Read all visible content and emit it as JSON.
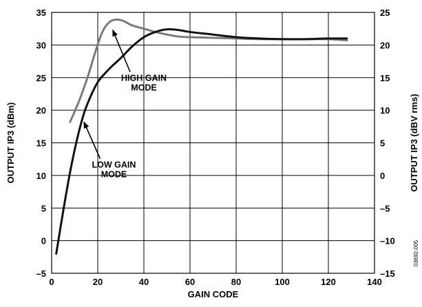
{
  "chart_data": {
    "type": "line",
    "xlabel": "GAIN CODE",
    "ylabel": "OUTPUT IP3 (dBm)",
    "y2label": "OUTPUT IP3 (dBV rms)",
    "xlim": [
      0,
      140
    ],
    "ylim": [
      -5,
      35
    ],
    "y2lim": [
      -15,
      25
    ],
    "x_ticks": [
      0,
      20,
      40,
      60,
      80,
      100,
      120,
      140
    ],
    "y_ticks": [
      -5,
      0,
      5,
      10,
      15,
      20,
      25,
      30,
      35
    ],
    "y2_ticks": [
      -15,
      -10,
      -5,
      0,
      5,
      10,
      15,
      20,
      25
    ],
    "y2_tick_labels": [
      "–15",
      "–10",
      "–5",
      "0",
      "5",
      "10",
      "15",
      "20",
      "25"
    ],
    "y_tick_labels": [
      "–5",
      "0",
      "5",
      "10",
      "15",
      "20",
      "25",
      "30",
      "35"
    ],
    "grid": true,
    "series": [
      {
        "name": "HIGH GAIN MODE",
        "color": "#7a7a7a",
        "x": [
          8,
          12,
          16,
          19,
          22,
          25,
          28,
          31,
          35,
          40,
          45,
          50,
          55,
          60,
          70,
          80,
          90,
          100,
          110,
          120,
          128
        ],
        "y": [
          18.2,
          21.5,
          25.5,
          29.0,
          32.0,
          33.5,
          33.9,
          33.7,
          33.0,
          32.5,
          32.0,
          31.6,
          31.3,
          31.2,
          31.1,
          31.0,
          30.9,
          30.9,
          30.9,
          30.9,
          30.7
        ]
      },
      {
        "name": "LOW GAIN MODE",
        "color": "#111111",
        "x": [
          2,
          5,
          8,
          11,
          14,
          17,
          20,
          23,
          26,
          30,
          35,
          40,
          45,
          50,
          55,
          60,
          70,
          80,
          90,
          100,
          110,
          120,
          128
        ],
        "y": [
          -2.0,
          4.5,
          10.5,
          15.5,
          19.5,
          22.2,
          24.3,
          25.6,
          26.7,
          28.0,
          29.8,
          31.2,
          32.0,
          32.4,
          32.3,
          32.0,
          31.6,
          31.2,
          31.0,
          30.9,
          30.9,
          31.0,
          31.0
        ]
      }
    ],
    "annotations": [
      {
        "lines": [
          "HIGH GAIN",
          "MODE"
        ],
        "x": 40,
        "y": 24.5,
        "arrow_to": [
          26.5,
          32.3
        ]
      },
      {
        "lines": [
          "LOW GAIN",
          "MODE"
        ],
        "x": 27,
        "y": 11.2,
        "arrow_to": [
          14,
          18.2
        ]
      }
    ],
    "figure_id": "03692-005"
  }
}
